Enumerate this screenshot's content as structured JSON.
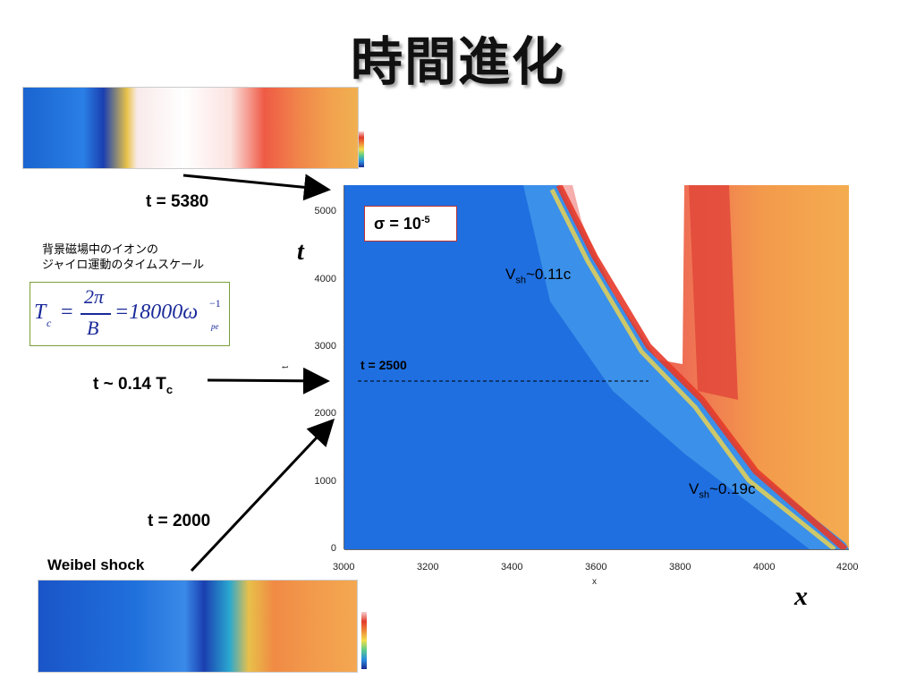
{
  "slide_title": "時間進化",
  "labels": {
    "t5380": "t = 5380",
    "t014": "t ~ 0.14 T",
    "t014_sub": "c",
    "t2000": "t = 2000",
    "weibel": "Weibel shock"
  },
  "japanese_note": {
    "line1": "背景磁場中のイオンの",
    "line2": "ジャイロ運動のタイムスケール"
  },
  "formula": {
    "lhs": "T",
    "lhs_sub": "c",
    "eq": "=",
    "num": "2π",
    "den": "B",
    "value": "=18000ω",
    "exp": "−1",
    "sub": "pe"
  },
  "main_plot": {
    "y_axis_letter": "t",
    "x_axis_letter": "x",
    "x_axis_small": "x",
    "y_axis_small": "t",
    "sigma_prefix": "σ = 10",
    "sigma_exp": "-5",
    "vsh1_base": "V",
    "vsh1_sub": "sh",
    "vsh1_val": "~0.11c",
    "vsh2_base": "V",
    "vsh2_sub": "sh",
    "vsh2_val": "~0.19c",
    "t2500": "t = 2500",
    "x_ticks": [
      "3000",
      "3200",
      "3400",
      "3600",
      "3800",
      "4000",
      "4200"
    ],
    "y_ticks": [
      "0",
      "1000",
      "2000",
      "3000",
      "4000",
      "5000"
    ]
  },
  "colors": {
    "plot_blue": "#1f6fe0",
    "shock_red": "#e53a2a",
    "downstream_orange": "#f4a24a",
    "arrow": "#000000"
  }
}
